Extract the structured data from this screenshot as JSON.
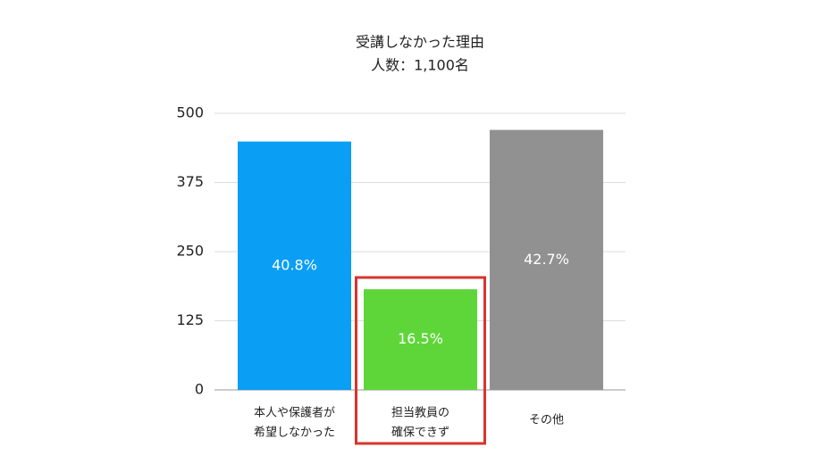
{
  "chart_data": {
    "type": "bar",
    "title": [
      "受講しなかった理由",
      "人数：1,100名"
    ],
    "categories": [
      [
        "本人や保護者が",
        "希望しなかった"
      ],
      [
        "担当教員の",
        "確保できず"
      ],
      [
        "その他"
      ]
    ],
    "values": [
      449,
      182,
      470
    ],
    "share_labels": [
      "40.8%",
      "16.5%",
      "42.7%"
    ],
    "colors": [
      "#0a9ef5",
      "#5ed63a",
      "#919191"
    ],
    "highlight": 1,
    "ylim": [
      0,
      500
    ],
    "yticks": [
      0,
      125,
      250,
      375,
      500
    ],
    "grid": true
  }
}
